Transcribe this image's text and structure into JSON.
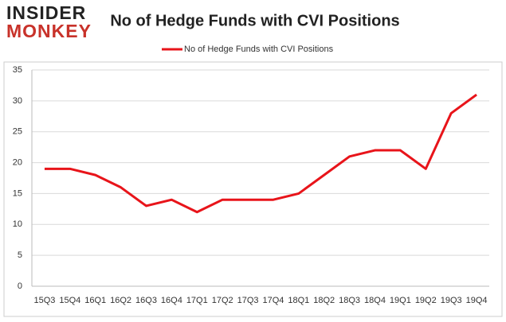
{
  "logo": {
    "line1": "INSIDER",
    "line2": "MONKEY"
  },
  "chart_data": {
    "type": "line",
    "title": "No of Hedge Funds with CVI Positions",
    "categories": [
      "15Q3",
      "15Q4",
      "16Q1",
      "16Q2",
      "16Q3",
      "16Q4",
      "17Q1",
      "17Q2",
      "17Q3",
      "17Q4",
      "18Q1",
      "18Q2",
      "18Q3",
      "18Q4",
      "19Q1",
      "19Q2",
      "19Q3",
      "19Q4"
    ],
    "series": [
      {
        "name": "No of Hedge Funds with CVI Positions",
        "color": "#e8141a",
        "values": [
          19,
          19,
          18,
          16,
          13,
          14,
          12,
          14,
          14,
          14,
          15,
          18,
          21,
          22,
          22,
          19,
          28,
          31
        ]
      }
    ],
    "ylim": [
      0,
      35
    ],
    "yticks": [
      0,
      5,
      10,
      15,
      20,
      25,
      30,
      35
    ],
    "grid": true,
    "legend": "top"
  }
}
